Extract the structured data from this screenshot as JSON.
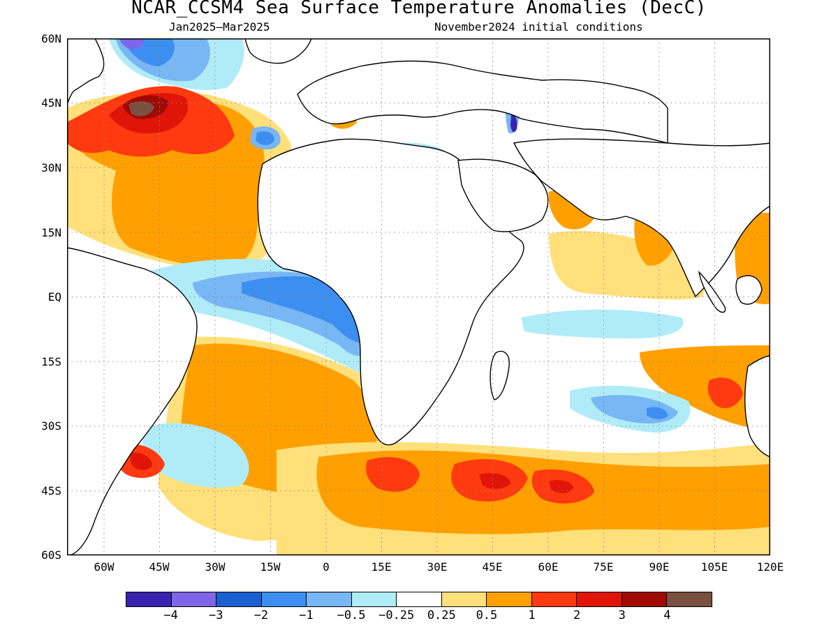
{
  "title": "NCAR_CCSM4 Sea Surface Temperature Anomalies (DecC)",
  "subtitle_left": "Jan2025–Mar2025",
  "subtitle_right": "November2024 initial conditions",
  "y_axis_labels": [
    "60N",
    "45N",
    "30N",
    "15N",
    "EQ",
    "15S",
    "30S",
    "45S",
    "60S"
  ],
  "x_axis_labels": [
    "60W",
    "45W",
    "30W",
    "15W",
    "0",
    "15E",
    "30E",
    "45E",
    "60E",
    "75E",
    "90E",
    "105E",
    "120E"
  ],
  "colorbar": {
    "colors": [
      "#3a22b0",
      "#7d66e8",
      "#1a5fd0",
      "#3c8ff0",
      "#78b6f4",
      "#b0ecf8",
      "#ffffff",
      "#ffe07a",
      "#ffa000",
      "#ff3a10",
      "#e01408",
      "#a00a04",
      "#7a5040"
    ],
    "labels": [
      "−4",
      "−3",
      "−2",
      "−1",
      "−0.5",
      "−0.25",
      "0.25",
      "0.5",
      "1",
      "2",
      "3",
      "4"
    ]
  },
  "map_extent": {
    "lon_min": -70,
    "lon_max": 120,
    "lat_min": -60,
    "lat_max": 60
  }
}
